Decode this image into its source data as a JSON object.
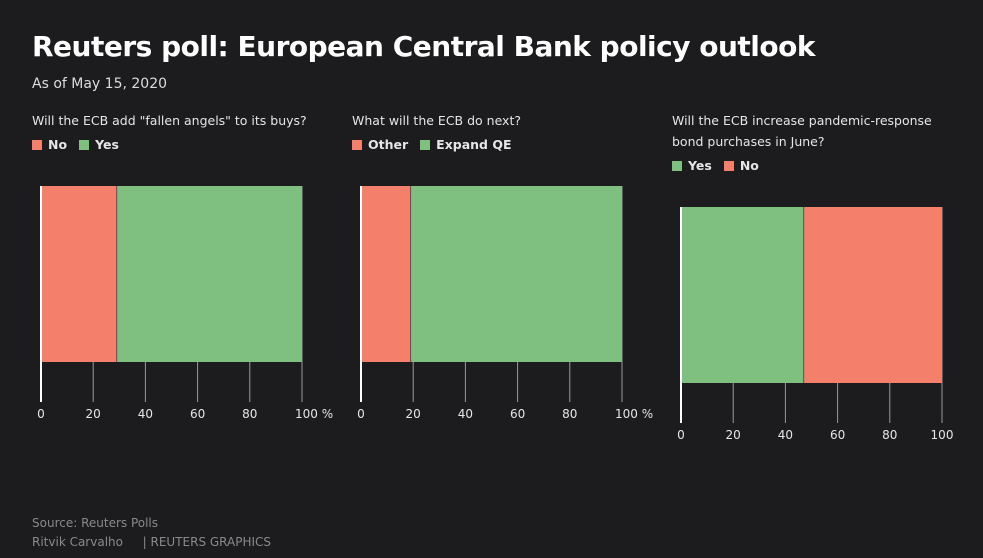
{
  "header": {
    "title": "Reuters poll: European Central Bank policy outlook",
    "subtitle": "As of May 15, 2020"
  },
  "colors": {
    "red": "#f47f6b",
    "green": "#7fbf7f",
    "axis": "#ffffff",
    "tick": "#9a9a9a"
  },
  "footer": {
    "source": "Source: Reuters Polls",
    "author": "Ritvik Carvalho",
    "brand": "| REUTERS GRAPHICS"
  },
  "chart_data": [
    {
      "type": "bar",
      "orientation": "horizontal-stacked",
      "question": "Will the ECB add \"fallen angels\" to its buys?",
      "series": [
        {
          "name": "No",
          "value": 29,
          "color": "#f47f6b"
        },
        {
          "name": "Yes",
          "value": 71,
          "color": "#7fbf7f"
        }
      ],
      "xlim": [
        0,
        100
      ],
      "ticks": [
        "0",
        "20",
        "40",
        "60",
        "80",
        "100 %"
      ],
      "grid": false,
      "legend": "top-left"
    },
    {
      "type": "bar",
      "orientation": "horizontal-stacked",
      "question": "What will the ECB do next?",
      "series": [
        {
          "name": "Other",
          "value": 19,
          "color": "#f47f6b"
        },
        {
          "name": "Expand QE",
          "value": 81,
          "color": "#7fbf7f"
        }
      ],
      "xlim": [
        0,
        100
      ],
      "ticks": [
        "0",
        "20",
        "40",
        "60",
        "80",
        "100 %"
      ],
      "grid": false,
      "legend": "top-left"
    },
    {
      "type": "bar",
      "orientation": "horizontal-stacked",
      "question": "Will the ECB increase pandemic-response bond purchases in June?",
      "series": [
        {
          "name": "Yes",
          "value": 47,
          "color": "#7fbf7f"
        },
        {
          "name": "No",
          "value": 53,
          "color": "#f47f6b"
        }
      ],
      "xlim": [
        0,
        100
      ],
      "ticks": [
        "0",
        "20",
        "40",
        "60",
        "80",
        "100"
      ],
      "grid": false,
      "legend": "top-left"
    }
  ]
}
